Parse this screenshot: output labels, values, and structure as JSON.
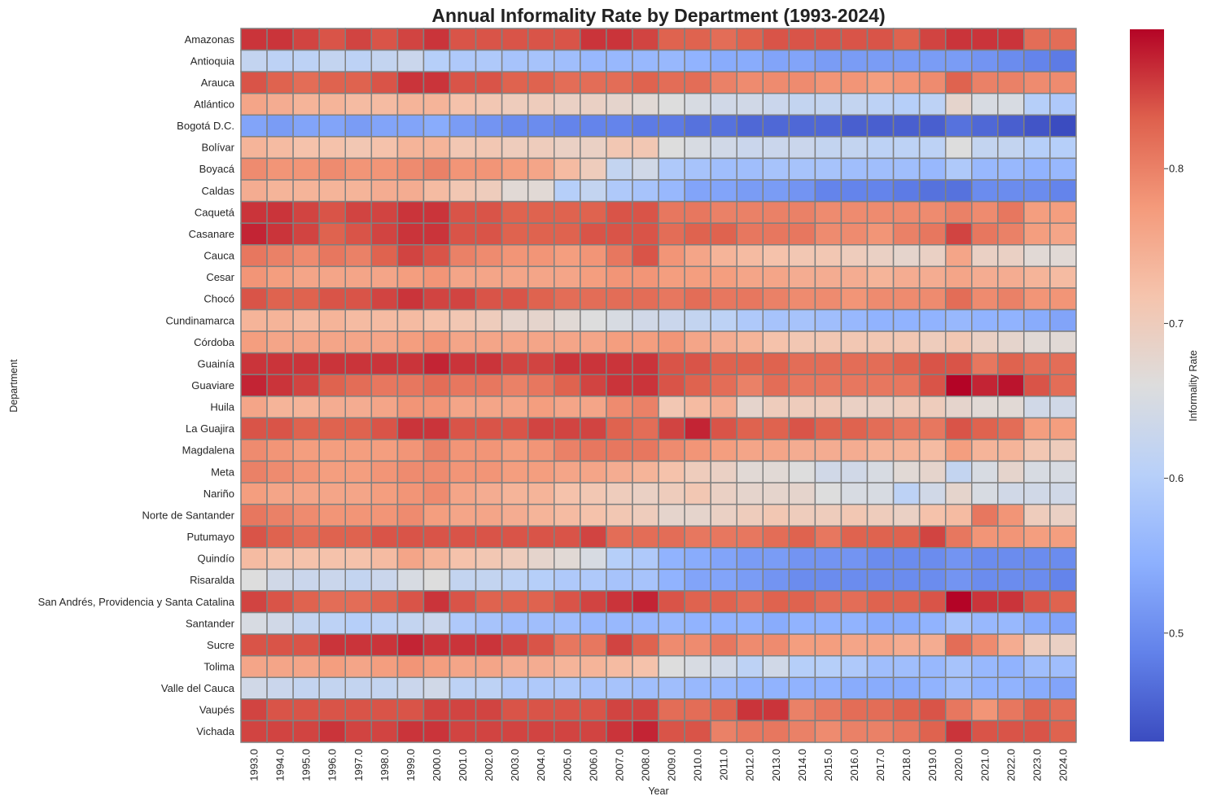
{
  "chart_data": {
    "type": "heatmap",
    "title": "Annual Informality Rate by Department (1993-2024)",
    "xlabel": "Year",
    "ylabel": "Department",
    "colorbar_label": "Informality Rate",
    "colormap": "coolwarm",
    "color_range": [
      0.43,
      0.89
    ],
    "colorbar_ticks": [
      "0.5",
      "0.6",
      "0.7",
      "0.8"
    ],
    "colorbar_tick_values": [
      0.5,
      0.6,
      0.7,
      0.8
    ],
    "cell_border_color": "#808080",
    "x": [
      "1993.0",
      "1994.0",
      "1995.0",
      "1996.0",
      "1997.0",
      "1998.0",
      "1999.0",
      "2000.0",
      "2001.0",
      "2002.0",
      "2003.0",
      "2004.0",
      "2005.0",
      "2006.0",
      "2007.0",
      "2008.0",
      "2009.0",
      "2010.0",
      "2011.0",
      "2012.0",
      "2013.0",
      "2014.0",
      "2015.0",
      "2016.0",
      "2017.0",
      "2018.0",
      "2019.0",
      "2020.0",
      "2021.0",
      "2022.0",
      "2023.0",
      "2024.0"
    ],
    "y": [
      "Amazonas",
      "Antioquia",
      "Arauca",
      "Atlántico",
      "Bogotá D.C.",
      "Bolívar",
      "Boyacá",
      "Caldas",
      "Caquetá",
      "Casanare",
      "Cauca",
      "Cesar",
      "Chocó",
      "Cundinamarca",
      "Córdoba",
      "Guainía",
      "Guaviare",
      "Huila",
      "La Guajira",
      "Magdalena",
      "Meta",
      "Nariño",
      "Norte de Santander",
      "Putumayo",
      "Quindío",
      "Risaralda",
      "San Andrés, Providencia y Santa Catalina",
      "Santander",
      "Sucre",
      "Tolima",
      "Valle del Cauca",
      "Vaupés",
      "Vichada"
    ],
    "values": [
      [
        0.86,
        0.86,
        0.85,
        0.84,
        0.85,
        0.84,
        0.85,
        0.86,
        0.84,
        0.84,
        0.84,
        0.84,
        0.84,
        0.86,
        0.86,
        0.85,
        0.83,
        0.83,
        0.82,
        0.83,
        0.84,
        0.84,
        0.84,
        0.84,
        0.84,
        0.83,
        0.85,
        0.86,
        0.86,
        0.86,
        0.82,
        0.82
      ],
      [
        0.62,
        0.61,
        0.61,
        0.62,
        0.61,
        0.62,
        0.63,
        0.6,
        0.59,
        0.59,
        0.58,
        0.58,
        0.57,
        0.56,
        0.56,
        0.56,
        0.56,
        0.55,
        0.54,
        0.54,
        0.53,
        0.53,
        0.52,
        0.52,
        0.52,
        0.52,
        0.52,
        0.52,
        0.51,
        0.5,
        0.49,
        0.48
      ],
      [
        0.84,
        0.83,
        0.82,
        0.83,
        0.83,
        0.84,
        0.86,
        0.86,
        0.84,
        0.84,
        0.83,
        0.83,
        0.82,
        0.82,
        0.82,
        0.83,
        0.82,
        0.82,
        0.8,
        0.79,
        0.79,
        0.79,
        0.78,
        0.78,
        0.77,
        0.78,
        0.79,
        0.83,
        0.8,
        0.8,
        0.79,
        0.79
      ],
      [
        0.76,
        0.75,
        0.74,
        0.74,
        0.73,
        0.73,
        0.74,
        0.74,
        0.72,
        0.71,
        0.7,
        0.7,
        0.69,
        0.69,
        0.68,
        0.67,
        0.66,
        0.65,
        0.64,
        0.64,
        0.63,
        0.62,
        0.62,
        0.62,
        0.61,
        0.6,
        0.61,
        0.68,
        0.65,
        0.65,
        0.6,
        0.59
      ],
      [
        0.53,
        0.52,
        0.53,
        0.53,
        0.52,
        0.53,
        0.53,
        0.54,
        0.52,
        0.51,
        0.5,
        0.5,
        0.49,
        0.49,
        0.49,
        0.48,
        0.48,
        0.47,
        0.47,
        0.46,
        0.46,
        0.46,
        0.46,
        0.45,
        0.45,
        0.45,
        0.45,
        0.47,
        0.46,
        0.45,
        0.44,
        0.43
      ],
      [
        0.74,
        0.73,
        0.72,
        0.72,
        0.71,
        0.72,
        0.74,
        0.74,
        0.71,
        0.71,
        0.7,
        0.7,
        0.69,
        0.69,
        0.71,
        0.71,
        0.66,
        0.65,
        0.64,
        0.63,
        0.63,
        0.63,
        0.62,
        0.62,
        0.61,
        0.61,
        0.61,
        0.66,
        0.62,
        0.62,
        0.6,
        0.6
      ],
      [
        0.79,
        0.78,
        0.78,
        0.79,
        0.78,
        0.78,
        0.79,
        0.8,
        0.78,
        0.78,
        0.77,
        0.76,
        0.73,
        0.7,
        0.62,
        0.64,
        0.59,
        0.58,
        0.57,
        0.57,
        0.58,
        0.58,
        0.58,
        0.57,
        0.57,
        0.57,
        0.56,
        0.59,
        0.56,
        0.56,
        0.55,
        0.56
      ],
      [
        0.75,
        0.74,
        0.74,
        0.74,
        0.74,
        0.75,
        0.75,
        0.73,
        0.71,
        0.7,
        0.67,
        0.67,
        0.6,
        0.62,
        0.59,
        0.58,
        0.56,
        0.53,
        0.53,
        0.52,
        0.52,
        0.51,
        0.49,
        0.49,
        0.49,
        0.48,
        0.47,
        0.47,
        0.5,
        0.5,
        0.5,
        0.49
      ],
      [
        0.86,
        0.86,
        0.85,
        0.84,
        0.85,
        0.85,
        0.86,
        0.86,
        0.84,
        0.84,
        0.83,
        0.83,
        0.83,
        0.83,
        0.84,
        0.84,
        0.81,
        0.81,
        0.8,
        0.8,
        0.8,
        0.8,
        0.79,
        0.79,
        0.79,
        0.79,
        0.79,
        0.8,
        0.79,
        0.81,
        0.77,
        0.77
      ],
      [
        0.87,
        0.86,
        0.85,
        0.83,
        0.84,
        0.85,
        0.86,
        0.86,
        0.84,
        0.84,
        0.83,
        0.83,
        0.83,
        0.84,
        0.84,
        0.84,
        0.82,
        0.83,
        0.83,
        0.81,
        0.81,
        0.81,
        0.79,
        0.79,
        0.78,
        0.8,
        0.81,
        0.85,
        0.81,
        0.8,
        0.77,
        0.76
      ],
      [
        0.81,
        0.8,
        0.79,
        0.81,
        0.8,
        0.83,
        0.85,
        0.84,
        0.8,
        0.79,
        0.78,
        0.78,
        0.77,
        0.78,
        0.81,
        0.84,
        0.78,
        0.76,
        0.74,
        0.73,
        0.72,
        0.71,
        0.71,
        0.7,
        0.69,
        0.68,
        0.69,
        0.76,
        0.69,
        0.69,
        0.67,
        0.67
      ],
      [
        0.78,
        0.77,
        0.76,
        0.76,
        0.76,
        0.76,
        0.77,
        0.78,
        0.76,
        0.76,
        0.76,
        0.76,
        0.76,
        0.77,
        0.78,
        0.78,
        0.77,
        0.77,
        0.77,
        0.76,
        0.76,
        0.75,
        0.75,
        0.75,
        0.74,
        0.75,
        0.75,
        0.76,
        0.75,
        0.75,
        0.74,
        0.73
      ],
      [
        0.84,
        0.83,
        0.83,
        0.84,
        0.84,
        0.85,
        0.86,
        0.85,
        0.85,
        0.84,
        0.84,
        0.83,
        0.82,
        0.82,
        0.82,
        0.82,
        0.81,
        0.82,
        0.81,
        0.81,
        0.8,
        0.79,
        0.79,
        0.78,
        0.79,
        0.79,
        0.79,
        0.82,
        0.79,
        0.8,
        0.78,
        0.78
      ],
      [
        0.74,
        0.74,
        0.73,
        0.74,
        0.73,
        0.73,
        0.73,
        0.72,
        0.71,
        0.7,
        0.68,
        0.68,
        0.67,
        0.66,
        0.65,
        0.64,
        0.63,
        0.62,
        0.61,
        0.59,
        0.58,
        0.58,
        0.57,
        0.56,
        0.55,
        0.55,
        0.55,
        0.56,
        0.55,
        0.55,
        0.54,
        0.53
      ],
      [
        0.77,
        0.76,
        0.76,
        0.76,
        0.76,
        0.76,
        0.77,
        0.78,
        0.76,
        0.76,
        0.76,
        0.76,
        0.76,
        0.76,
        0.77,
        0.77,
        0.78,
        0.76,
        0.75,
        0.74,
        0.72,
        0.71,
        0.71,
        0.71,
        0.71,
        0.71,
        0.7,
        0.71,
        0.69,
        0.68,
        0.67,
        0.67
      ],
      [
        0.86,
        0.86,
        0.86,
        0.86,
        0.86,
        0.86,
        0.86,
        0.87,
        0.86,
        0.86,
        0.85,
        0.85,
        0.86,
        0.86,
        0.86,
        0.86,
        0.84,
        0.84,
        0.83,
        0.83,
        0.83,
        0.82,
        0.82,
        0.82,
        0.82,
        0.83,
        0.84,
        0.84,
        0.81,
        0.83,
        0.82,
        0.82
      ],
      [
        0.87,
        0.86,
        0.85,
        0.83,
        0.82,
        0.81,
        0.81,
        0.82,
        0.81,
        0.81,
        0.8,
        0.81,
        0.83,
        0.85,
        0.86,
        0.86,
        0.84,
        0.83,
        0.82,
        0.8,
        0.82,
        0.81,
        0.81,
        0.81,
        0.81,
        0.81,
        0.84,
        0.89,
        0.87,
        0.88,
        0.84,
        0.82
      ],
      [
        0.76,
        0.74,
        0.74,
        0.75,
        0.75,
        0.76,
        0.78,
        0.78,
        0.76,
        0.76,
        0.76,
        0.77,
        0.76,
        0.76,
        0.79,
        0.8,
        0.71,
        0.73,
        0.75,
        0.68,
        0.7,
        0.7,
        0.7,
        0.69,
        0.69,
        0.7,
        0.7,
        0.68,
        0.67,
        0.67,
        0.64,
        0.64
      ],
      [
        0.84,
        0.84,
        0.83,
        0.83,
        0.83,
        0.84,
        0.86,
        0.86,
        0.84,
        0.84,
        0.84,
        0.85,
        0.85,
        0.85,
        0.83,
        0.82,
        0.85,
        0.87,
        0.84,
        0.83,
        0.83,
        0.84,
        0.83,
        0.83,
        0.82,
        0.81,
        0.81,
        0.84,
        0.83,
        0.82,
        0.77,
        0.77
      ],
      [
        0.79,
        0.78,
        0.77,
        0.77,
        0.77,
        0.77,
        0.78,
        0.8,
        0.78,
        0.78,
        0.77,
        0.78,
        0.8,
        0.81,
        0.81,
        0.81,
        0.79,
        0.78,
        0.77,
        0.76,
        0.76,
        0.75,
        0.75,
        0.75,
        0.74,
        0.74,
        0.73,
        0.77,
        0.74,
        0.74,
        0.71,
        0.7
      ],
      [
        0.8,
        0.79,
        0.78,
        0.77,
        0.77,
        0.78,
        0.79,
        0.79,
        0.78,
        0.78,
        0.77,
        0.77,
        0.76,
        0.76,
        0.75,
        0.74,
        0.72,
        0.7,
        0.69,
        0.67,
        0.67,
        0.66,
        0.64,
        0.64,
        0.65,
        0.67,
        0.68,
        0.62,
        0.65,
        0.68,
        0.65,
        0.65
      ],
      [
        0.77,
        0.76,
        0.76,
        0.76,
        0.76,
        0.77,
        0.78,
        0.79,
        0.76,
        0.75,
        0.74,
        0.74,
        0.72,
        0.71,
        0.7,
        0.69,
        0.7,
        0.71,
        0.69,
        0.68,
        0.68,
        0.68,
        0.66,
        0.65,
        0.65,
        0.61,
        0.64,
        0.68,
        0.65,
        0.64,
        0.64,
        0.64
      ],
      [
        0.81,
        0.8,
        0.79,
        0.78,
        0.78,
        0.78,
        0.79,
        0.77,
        0.76,
        0.76,
        0.75,
        0.74,
        0.73,
        0.72,
        0.71,
        0.7,
        0.68,
        0.68,
        0.69,
        0.7,
        0.71,
        0.7,
        0.7,
        0.71,
        0.7,
        0.69,
        0.72,
        0.73,
        0.81,
        0.78,
        0.7,
        0.69
      ],
      [
        0.84,
        0.83,
        0.82,
        0.83,
        0.83,
        0.84,
        0.84,
        0.84,
        0.84,
        0.84,
        0.84,
        0.84,
        0.84,
        0.85,
        0.82,
        0.82,
        0.82,
        0.81,
        0.81,
        0.81,
        0.82,
        0.83,
        0.81,
        0.83,
        0.83,
        0.83,
        0.85,
        0.81,
        0.78,
        0.78,
        0.77,
        0.77
      ],
      [
        0.73,
        0.72,
        0.72,
        0.72,
        0.72,
        0.73,
        0.76,
        0.74,
        0.72,
        0.71,
        0.7,
        0.68,
        0.67,
        0.65,
        0.6,
        0.59,
        0.55,
        0.54,
        0.53,
        0.52,
        0.52,
        0.51,
        0.51,
        0.51,
        0.5,
        0.5,
        0.5,
        0.51,
        0.5,
        0.5,
        0.5,
        0.5
      ],
      [
        0.66,
        0.64,
        0.63,
        0.63,
        0.62,
        0.63,
        0.65,
        0.66,
        0.62,
        0.62,
        0.61,
        0.6,
        0.59,
        0.59,
        0.58,
        0.58,
        0.55,
        0.53,
        0.53,
        0.52,
        0.51,
        0.5,
        0.5,
        0.5,
        0.5,
        0.5,
        0.5,
        0.51,
        0.5,
        0.5,
        0.5,
        0.49
      ],
      [
        0.85,
        0.84,
        0.83,
        0.82,
        0.82,
        0.83,
        0.84,
        0.86,
        0.84,
        0.83,
        0.83,
        0.83,
        0.84,
        0.85,
        0.86,
        0.87,
        0.84,
        0.83,
        0.83,
        0.82,
        0.83,
        0.83,
        0.82,
        0.82,
        0.83,
        0.83,
        0.84,
        0.89,
        0.86,
        0.86,
        0.84,
        0.83
      ],
      [
        0.65,
        0.64,
        0.62,
        0.61,
        0.6,
        0.61,
        0.62,
        0.63,
        0.59,
        0.58,
        0.57,
        0.57,
        0.57,
        0.56,
        0.56,
        0.56,
        0.56,
        0.55,
        0.55,
        0.55,
        0.54,
        0.55,
        0.55,
        0.55,
        0.54,
        0.54,
        0.55,
        0.58,
        0.56,
        0.56,
        0.54,
        0.53
      ],
      [
        0.84,
        0.84,
        0.84,
        0.86,
        0.86,
        0.86,
        0.87,
        0.86,
        0.86,
        0.86,
        0.85,
        0.84,
        0.81,
        0.81,
        0.85,
        0.83,
        0.79,
        0.79,
        0.81,
        0.79,
        0.79,
        0.77,
        0.77,
        0.76,
        0.76,
        0.75,
        0.75,
        0.82,
        0.79,
        0.75,
        0.7,
        0.69
      ],
      [
        0.76,
        0.76,
        0.76,
        0.77,
        0.76,
        0.77,
        0.78,
        0.77,
        0.76,
        0.76,
        0.75,
        0.75,
        0.74,
        0.74,
        0.73,
        0.72,
        0.66,
        0.65,
        0.64,
        0.61,
        0.64,
        0.6,
        0.6,
        0.59,
        0.57,
        0.57,
        0.56,
        0.58,
        0.56,
        0.55,
        0.57,
        0.57
      ],
      [
        0.64,
        0.63,
        0.62,
        0.62,
        0.62,
        0.62,
        0.63,
        0.64,
        0.61,
        0.61,
        0.59,
        0.59,
        0.59,
        0.58,
        0.58,
        0.57,
        0.57,
        0.56,
        0.56,
        0.55,
        0.55,
        0.55,
        0.55,
        0.54,
        0.54,
        0.54,
        0.55,
        0.57,
        0.55,
        0.55,
        0.54,
        0.53
      ],
      [
        0.85,
        0.84,
        0.84,
        0.84,
        0.84,
        0.84,
        0.84,
        0.85,
        0.85,
        0.85,
        0.84,
        0.84,
        0.84,
        0.84,
        0.85,
        0.85,
        0.82,
        0.82,
        0.83,
        0.86,
        0.86,
        0.8,
        0.81,
        0.82,
        0.82,
        0.83,
        0.84,
        0.81,
        0.78,
        0.81,
        0.83,
        0.82
      ],
      [
        0.85,
        0.85,
        0.85,
        0.86,
        0.85,
        0.85,
        0.86,
        0.86,
        0.85,
        0.85,
        0.85,
        0.85,
        0.85,
        0.85,
        0.86,
        0.87,
        0.84,
        0.84,
        0.8,
        0.81,
        0.81,
        0.8,
        0.79,
        0.8,
        0.8,
        0.81,
        0.83,
        0.86,
        0.84,
        0.84,
        0.84,
        0.83
      ]
    ]
  }
}
